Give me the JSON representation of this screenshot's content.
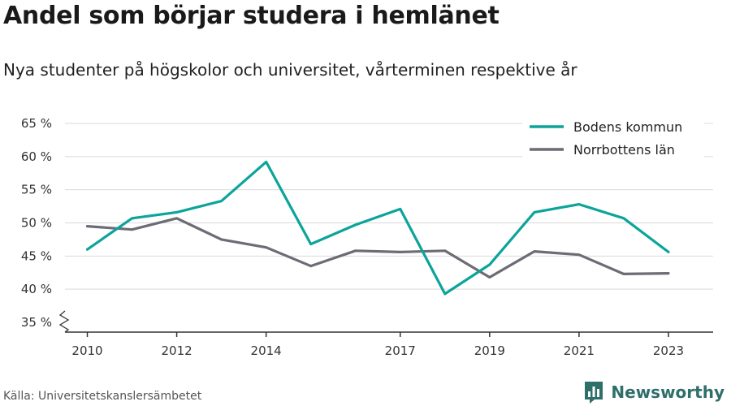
{
  "title": "Andel som börjar studera i hemlänet",
  "subtitle": "Nya studenter på högskolor och universitet, vårterminen respektive år",
  "source": "Källa: Universitetskanslersämbetet",
  "brand": "Newsworthy",
  "colors": {
    "bodens": "#0ca49a",
    "norrbotten": "#6d6c75",
    "grid": "#d9d9d9",
    "axis": "#333333",
    "brand": "#2f6f6a"
  },
  "icons": {
    "brand": "bar-chart-logo-icon",
    "axis_break": "axis-break-icon"
  },
  "chart_data": {
    "type": "line",
    "x": [
      2010,
      2011,
      2012,
      2013,
      2014,
      2015,
      2016,
      2017,
      2018,
      2019,
      2020,
      2021,
      2022,
      2023
    ],
    "x_ticks": [
      2010,
      2012,
      2014,
      2017,
      2019,
      2021,
      2023
    ],
    "y_ticks": [
      35,
      40,
      45,
      50,
      55,
      60,
      65
    ],
    "y_tick_labels": [
      "35 %",
      "40 %",
      "45 %",
      "50 %",
      "55 %",
      "60 %",
      "65 %"
    ],
    "ylim": [
      35,
      65
    ],
    "xlim": [
      2009.5,
      2024
    ],
    "y_axis_break": true,
    "grid": true,
    "legend_position": "top-right",
    "series": [
      {
        "name": "Bodens kommun",
        "color": "#0ca49a",
        "values": [
          46.0,
          50.7,
          51.6,
          53.3,
          59.2,
          46.8,
          49.7,
          52.1,
          39.3,
          43.7,
          51.6,
          52.8,
          50.7,
          45.6
        ]
      },
      {
        "name": "Norrbottens län",
        "color": "#6d6c75",
        "values": [
          49.5,
          49.0,
          50.7,
          47.5,
          46.3,
          43.5,
          45.8,
          45.6,
          45.8,
          41.8,
          45.7,
          45.2,
          42.3,
          42.4
        ]
      }
    ]
  }
}
